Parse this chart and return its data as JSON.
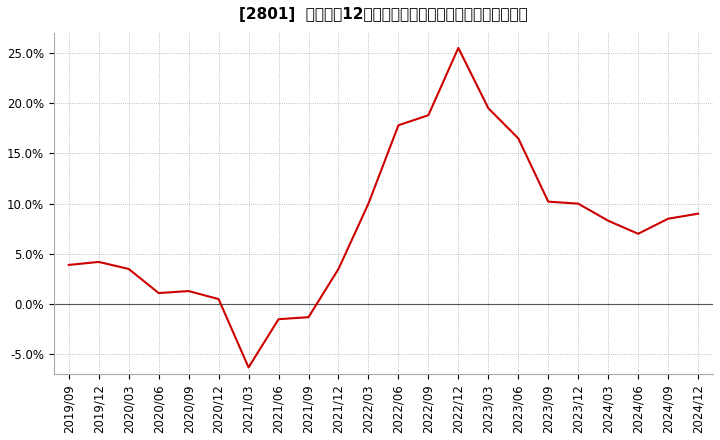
{
  "title": "[2801]  売上高の12か月移動合計の対前年同期増減率の推移",
  "x_labels": [
    "2019/09",
    "2019/12",
    "2020/03",
    "2020/06",
    "2020/09",
    "2020/12",
    "2021/03",
    "2021/06",
    "2021/09",
    "2021/12",
    "2022/03",
    "2022/06",
    "2022/09",
    "2022/12",
    "2023/03",
    "2023/06",
    "2023/09",
    "2023/12",
    "2024/03",
    "2024/06",
    "2024/09",
    "2024/12"
  ],
  "y_values": [
    3.9,
    4.2,
    3.5,
    1.1,
    1.3,
    0.5,
    -6.3,
    -1.5,
    -1.3,
    3.5,
    10.0,
    17.8,
    18.8,
    25.5,
    19.5,
    16.5,
    10.2,
    10.0,
    8.3,
    7.0,
    8.5,
    9.0
  ],
  "line_color": "#cc0000",
  "bg_color": "#ffffff",
  "plot_bg_color": "#ffffff",
  "grid_color": "#aaaaaa",
  "zero_line_color": "#555555",
  "ylim_min": -7.0,
  "ylim_max": 27.0,
  "yticks": [
    -5.0,
    0.0,
    5.0,
    10.0,
    15.0,
    20.0,
    25.0
  ],
  "title_fontsize": 11,
  "tick_fontsize": 8.5
}
